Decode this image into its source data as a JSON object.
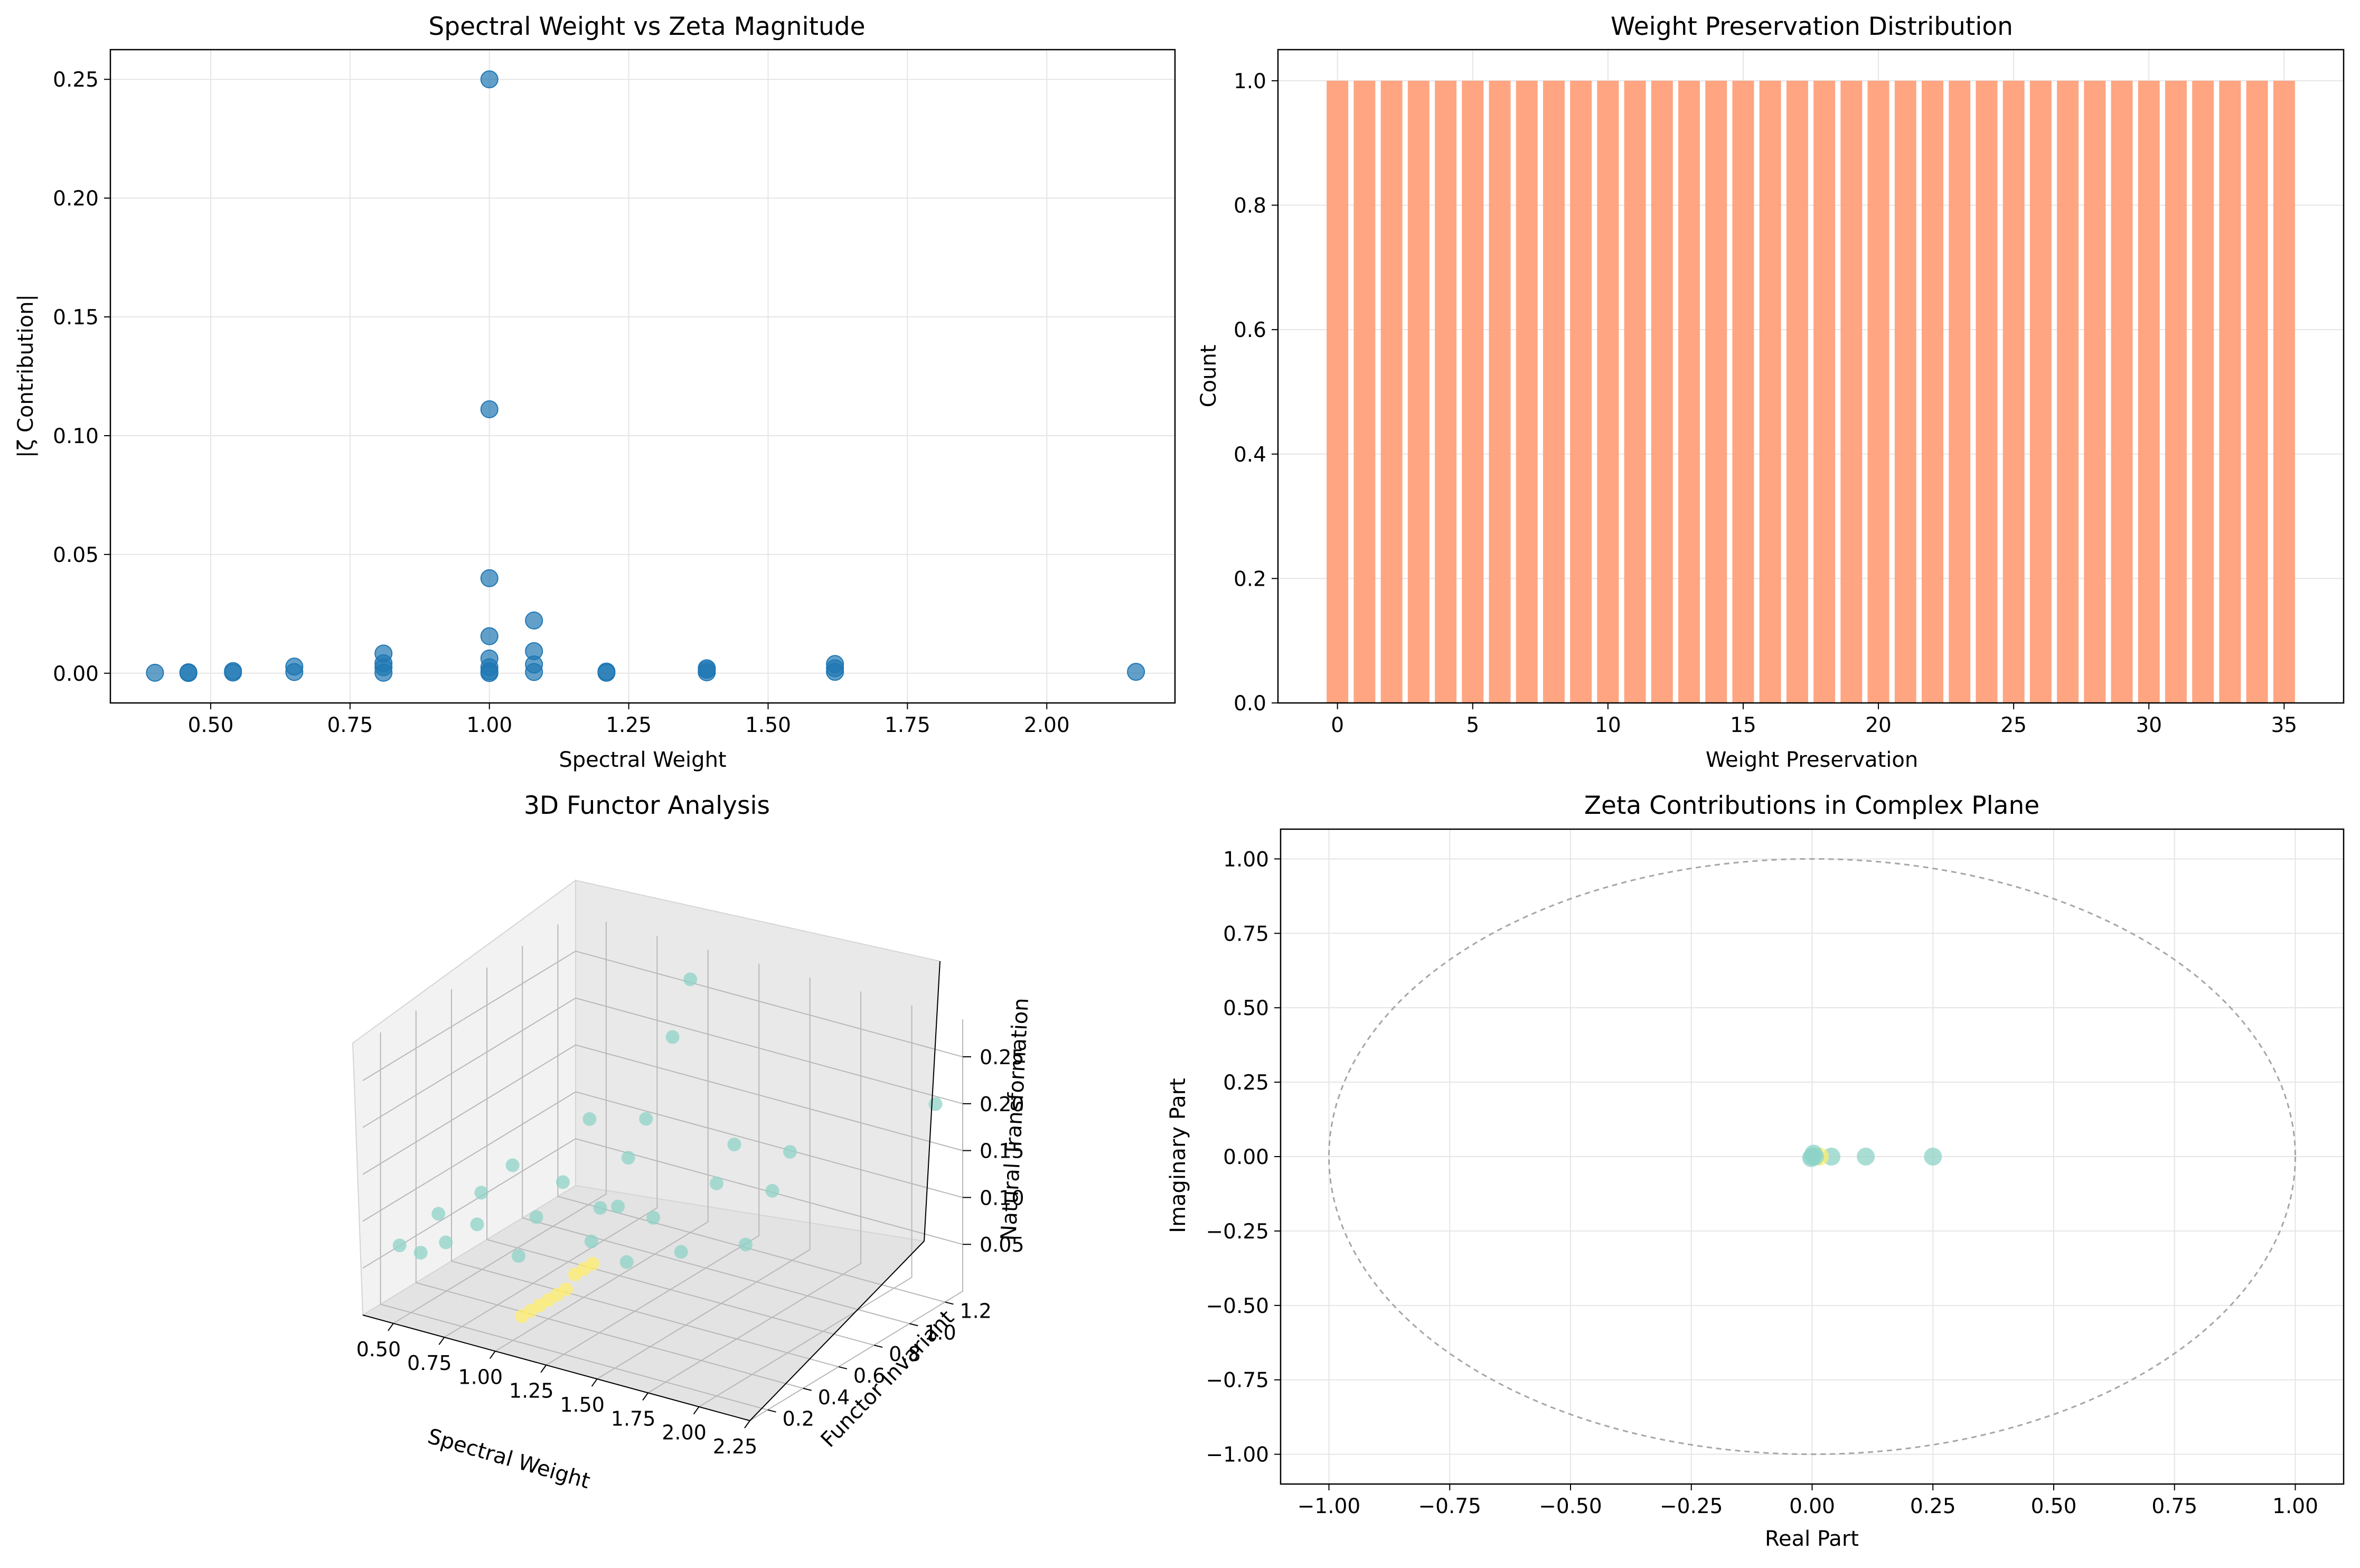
{
  "colors": {
    "scatter": "#1f77b4",
    "bar": "#FFA07A",
    "teal": "#8dd3c7",
    "yellow": "#ffed6f",
    "grid": "#e5e5e5",
    "circle": "#a6a6a6"
  },
  "chart_data": [
    {
      "id": "spectral_vs_zeta",
      "type": "scatter",
      "title": "Spectral Weight vs Zeta Magnitude",
      "xlabel": "Spectral Weight",
      "ylabel": "|ζ Contribution|",
      "xlim": [
        0.32,
        2.23
      ],
      "ylim": [
        -0.0125,
        0.2625
      ],
      "xticks": [
        0.5,
        0.75,
        1.0,
        1.25,
        1.5,
        1.75,
        2.0
      ],
      "xtick_labels": [
        "0.50",
        "0.75",
        "1.00",
        "1.25",
        "1.50",
        "1.75",
        "2.00"
      ],
      "yticks": [
        0.0,
        0.05,
        0.1,
        0.15,
        0.2,
        0.25
      ],
      "ytick_labels": [
        "0.00",
        "0.05",
        "0.10",
        "0.15",
        "0.20",
        "0.25"
      ],
      "grid": true,
      "points": [
        {
          "x": 0.4,
          "y": 0.0002
        },
        {
          "x": 0.46,
          "y": 0.0001
        },
        {
          "x": 0.46,
          "y": 0.0004
        },
        {
          "x": 0.54,
          "y": 0.0003
        },
        {
          "x": 0.54,
          "y": 0.0009
        },
        {
          "x": 0.65,
          "y": 0.0005
        },
        {
          "x": 0.65,
          "y": 0.0028
        },
        {
          "x": 0.81,
          "y": 0.0002
        },
        {
          "x": 0.81,
          "y": 0.0025
        },
        {
          "x": 0.81,
          "y": 0.0042
        },
        {
          "x": 0.81,
          "y": 0.0083
        },
        {
          "x": 1.0,
          "y": 0.25
        },
        {
          "x": 1.0,
          "y": 0.1111
        },
        {
          "x": 1.0,
          "y": 0.04
        },
        {
          "x": 1.0,
          "y": 0.0156
        },
        {
          "x": 1.0,
          "y": 0.0062
        },
        {
          "x": 1.0,
          "y": 0.0025
        },
        {
          "x": 1.0,
          "y": 0.0008
        },
        {
          "x": 1.0,
          "y": 0.0001
        },
        {
          "x": 1.08,
          "y": 0.0222
        },
        {
          "x": 1.08,
          "y": 0.0093
        },
        {
          "x": 1.08,
          "y": 0.0037
        },
        {
          "x": 1.08,
          "y": 0.0005
        },
        {
          "x": 1.21,
          "y": 0.0002
        },
        {
          "x": 1.21,
          "y": 0.0007
        },
        {
          "x": 1.39,
          "y": 0.0004
        },
        {
          "x": 1.39,
          "y": 0.0014
        },
        {
          "x": 1.39,
          "y": 0.0021
        },
        {
          "x": 1.62,
          "y": 0.0006
        },
        {
          "x": 1.62,
          "y": 0.0021
        },
        {
          "x": 1.62,
          "y": 0.0039
        },
        {
          "x": 2.16,
          "y": 0.0006
        }
      ]
    },
    {
      "id": "weight_preservation",
      "type": "bar",
      "title": "Weight Preservation Distribution",
      "xlabel": "Weight Preservation",
      "ylabel": "Count",
      "xlim": [
        -2.2,
        37.2
      ],
      "ylim": [
        0,
        1.05
      ],
      "xticks": [
        0,
        5,
        10,
        15,
        20,
        25,
        30,
        35
      ],
      "xtick_labels": [
        "0",
        "5",
        "10",
        "15",
        "20",
        "25",
        "30",
        "35"
      ],
      "yticks": [
        0,
        0.2,
        0.4,
        0.6,
        0.8,
        1.0
      ],
      "ytick_labels": [
        "0.0",
        "0.2",
        "0.4",
        "0.6",
        "0.8",
        "1.0"
      ],
      "grid": true,
      "categories": [
        0,
        1,
        2,
        3,
        4,
        5,
        6,
        7,
        8,
        9,
        10,
        11,
        12,
        13,
        14,
        15,
        16,
        17,
        18,
        19,
        20,
        21,
        22,
        23,
        24,
        25,
        26,
        27,
        28,
        29,
        30,
        31,
        32,
        33,
        34,
        35
      ],
      "values": [
        1,
        1,
        1,
        1,
        1,
        1,
        1,
        1,
        1,
        1,
        1,
        1,
        1,
        1,
        1,
        1,
        1,
        1,
        1,
        1,
        1,
        1,
        1,
        1,
        1,
        1,
        1,
        1,
        1,
        1,
        1,
        1,
        1,
        1,
        1,
        1
      ]
    },
    {
      "id": "functor_3d",
      "type": "scatter3d",
      "title": "3D Functor Analysis",
      "xlabel": "Spectral Weight",
      "ylabel": "Functor Invariant",
      "zlabel": "Natural Transformation",
      "xtick_labels": [
        "0.50",
        "0.75",
        "1.00",
        "1.25",
        "1.50",
        "1.75",
        "2.00",
        "2.25"
      ],
      "ytick_labels": [
        "0.2",
        "0.4",
        "0.6",
        "0.8",
        "1.0",
        "1.2"
      ],
      "ztick_labels": [
        "0.05",
        "0.10",
        "0.15",
        "0.20",
        "0.25"
      ],
      "series": [
        {
          "name": "teal",
          "points": [
            {
              "x": 0.4,
              "y": 0.25,
              "z": 0.06
            },
            {
              "x": 0.46,
              "y": 0.3,
              "z": 0.05
            },
            {
              "x": 0.46,
              "y": 0.4,
              "z": 0.08
            },
            {
              "x": 0.54,
              "y": 0.35,
              "z": 0.06
            },
            {
              "x": 0.54,
              "y": 0.55,
              "z": 0.09
            },
            {
              "x": 0.65,
              "y": 0.4,
              "z": 0.08
            },
            {
              "x": 0.65,
              "y": 0.6,
              "z": 0.12
            },
            {
              "x": 0.81,
              "y": 0.45,
              "z": 0.05
            },
            {
              "x": 0.81,
              "y": 0.55,
              "z": 0.08
            },
            {
              "x": 0.81,
              "y": 0.7,
              "z": 0.1
            },
            {
              "x": 0.81,
              "y": 0.85,
              "z": 0.15
            },
            {
              "x": 1.0,
              "y": 1.2,
              "z": 0.27
            },
            {
              "x": 1.0,
              "y": 1.1,
              "z": 0.22
            },
            {
              "x": 1.0,
              "y": 0.95,
              "z": 0.15
            },
            {
              "x": 1.0,
              "y": 0.85,
              "z": 0.12
            },
            {
              "x": 1.08,
              "y": 0.6,
              "z": 0.1
            },
            {
              "x": 1.08,
              "y": 0.7,
              "z": 0.09
            },
            {
              "x": 1.08,
              "y": 0.55,
              "z": 0.07
            },
            {
              "x": 1.21,
              "y": 0.6,
              "z": 0.05
            },
            {
              "x": 1.21,
              "y": 0.75,
              "z": 0.08
            },
            {
              "x": 1.39,
              "y": 0.7,
              "z": 0.06
            },
            {
              "x": 1.39,
              "y": 0.9,
              "z": 0.11
            },
            {
              "x": 1.39,
              "y": 1.0,
              "z": 0.14
            },
            {
              "x": 1.62,
              "y": 0.8,
              "z": 0.07
            },
            {
              "x": 1.62,
              "y": 0.95,
              "z": 0.11
            },
            {
              "x": 1.62,
              "y": 1.05,
              "z": 0.14
            },
            {
              "x": 2.16,
              "y": 1.25,
              "z": 0.2
            }
          ]
        },
        {
          "name": "yellow",
          "points": [
            {
              "x": 1.0,
              "y": 0.25,
              "z": 0.02
            },
            {
              "x": 1.0,
              "y": 0.3,
              "z": 0.02
            },
            {
              "x": 1.0,
              "y": 0.35,
              "z": 0.02
            },
            {
              "x": 1.0,
              "y": 0.4,
              "z": 0.02
            },
            {
              "x": 1.0,
              "y": 0.45,
              "z": 0.02
            },
            {
              "x": 1.0,
              "y": 0.5,
              "z": 0.02
            },
            {
              "x": 1.0,
              "y": 0.55,
              "z": 0.03
            },
            {
              "x": 1.0,
              "y": 0.6,
              "z": 0.03
            },
            {
              "x": 1.0,
              "y": 0.65,
              "z": 0.03
            }
          ]
        }
      ]
    },
    {
      "id": "zeta_complex_plane",
      "type": "scatter",
      "title": "Zeta Contributions in Complex Plane",
      "xlabel": "Real Part",
      "ylabel": "Imaginary Part",
      "xlim": [
        -1.1,
        1.1
      ],
      "ylim": [
        -1.1,
        1.1
      ],
      "xticks": [
        -1.0,
        -0.75,
        -0.5,
        -0.25,
        0.0,
        0.25,
        0.5,
        0.75,
        1.0
      ],
      "xtick_labels": [
        "−1.00",
        "−0.75",
        "−0.50",
        "−0.25",
        "0.00",
        "0.25",
        "0.50",
        "0.75",
        "1.00"
      ],
      "yticks": [
        -1.0,
        -0.75,
        -0.5,
        -0.25,
        0.0,
        0.25,
        0.5,
        0.75,
        1.0
      ],
      "ytick_labels": [
        "−1.00",
        "−0.75",
        "−0.50",
        "−0.25",
        "0.00",
        "0.25",
        "0.50",
        "0.75",
        "1.00"
      ],
      "grid": true,
      "unit_circle": true,
      "points": [
        {
          "x": 0.25,
          "y": 0.0,
          "c": "teal"
        },
        {
          "x": 0.111,
          "y": 0.0,
          "c": "teal"
        },
        {
          "x": 0.04,
          "y": 0.0,
          "c": "teal"
        },
        {
          "x": 0.016,
          "y": 0.0,
          "c": "yellow"
        },
        {
          "x": 0.006,
          "y": 0.0,
          "c": "teal"
        },
        {
          "x": 0.003,
          "y": 0.01,
          "c": "teal"
        },
        {
          "x": 0.0,
          "y": 0.0,
          "c": "teal"
        },
        {
          "x": -0.002,
          "y": -0.005,
          "c": "teal"
        }
      ]
    }
  ]
}
